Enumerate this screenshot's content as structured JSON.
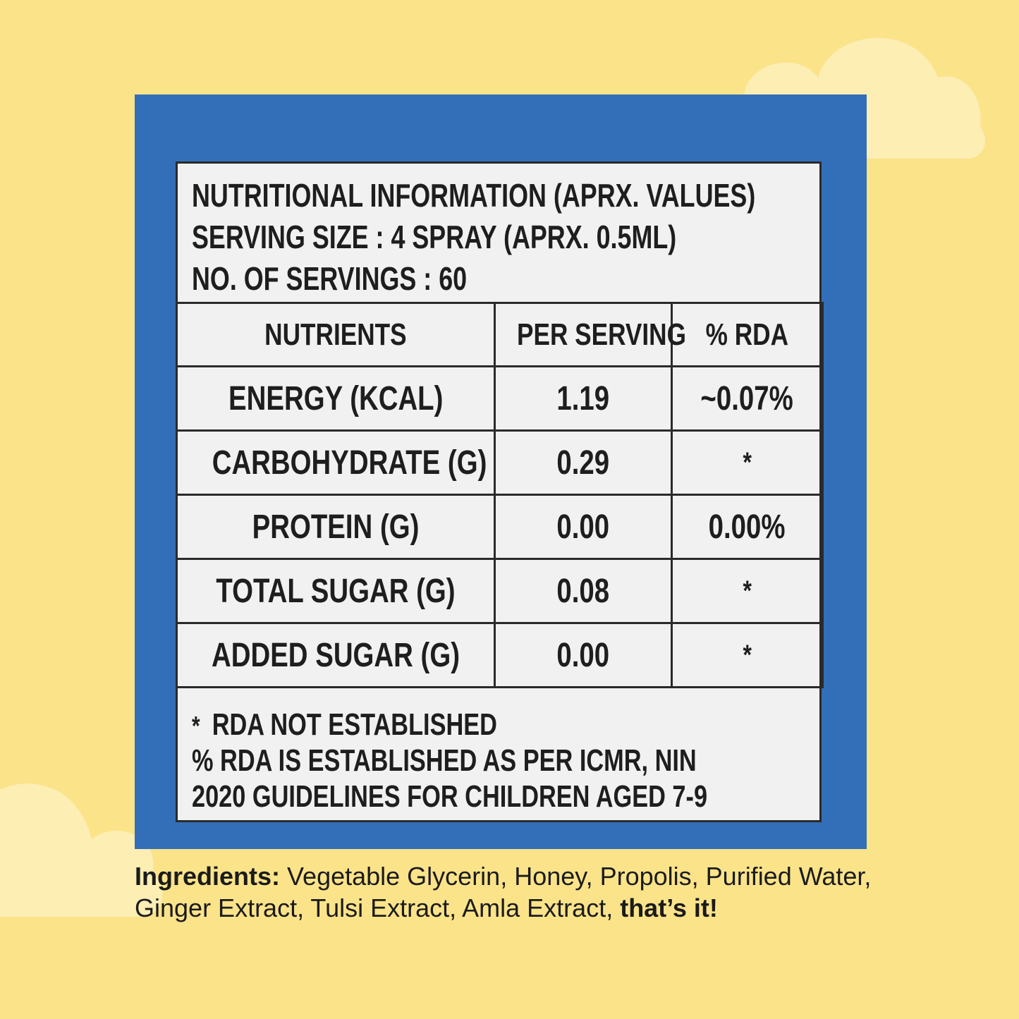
{
  "colors": {
    "background": "#fbe38a",
    "card": "#336fb8",
    "panel": "#f1f1f1",
    "cloud": "#fdeeb4"
  },
  "label": {
    "header_lines": [
      "NUTRITIONAL INFORMATION (APRX. VALUES)",
      "SERVING SIZE : 4 SPRAY (APRX. 0.5ML)",
      "NO. OF SERVINGS : 60"
    ],
    "columns": [
      "NUTRIENTS",
      "PER SERVING",
      "% RDA"
    ],
    "rows": [
      {
        "nutrient": "ENERGY (KCAL)",
        "per_serving": "1.19",
        "rda": "~0.07%"
      },
      {
        "nutrient": "CARBOHYDRATE (G)",
        "per_serving": "0.29",
        "rda": "*"
      },
      {
        "nutrient": "PROTEIN (G)",
        "per_serving": "0.00",
        "rda": "0.00%"
      },
      {
        "nutrient": "TOTAL SUGAR (G)",
        "per_serving": "0.08",
        "rda": "*"
      },
      {
        "nutrient": "ADDED SUGAR (G)",
        "per_serving": "0.00",
        "rda": "*"
      }
    ],
    "footnote": {
      "asterisk": "*",
      "line1": "RDA NOT ESTABLISHED",
      "line2": "% RDA IS ESTABLISHED AS PER ICMR, NIN",
      "line3": "2020 GUIDELINES FOR CHILDREN AGED 7-9"
    }
  },
  "ingredients": {
    "label": "Ingredients:",
    "text": " Vegetable Glycerin, Honey, Propolis, Purified Water, Ginger Extract, Tulsi Extract, Amla Extract, ",
    "closing": "that’s it!"
  }
}
